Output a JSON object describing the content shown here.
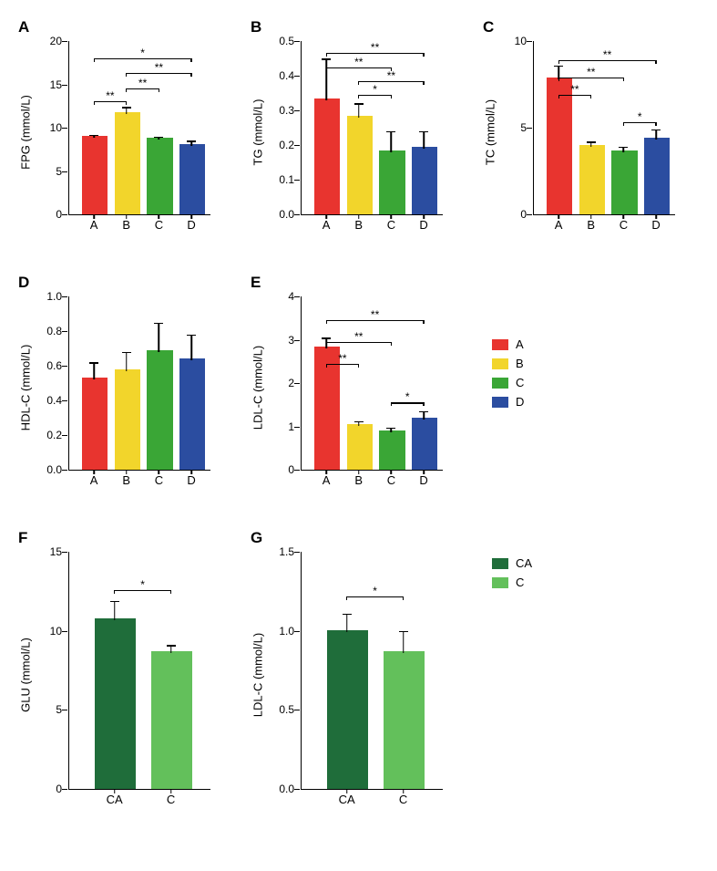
{
  "colors": {
    "A": "#e8342f",
    "B": "#f2d52b",
    "C": "#3aa636",
    "D": "#2b4da0",
    "CA": "#1f6d3a",
    "Cgreen": "#63c05b",
    "axis": "#000000",
    "bg": "#ffffff"
  },
  "legend_abcd": {
    "items": [
      {
        "label": "A",
        "color_key": "A"
      },
      {
        "label": "B",
        "color_key": "B"
      },
      {
        "label": "C",
        "color_key": "C"
      },
      {
        "label": "D",
        "color_key": "D"
      }
    ]
  },
  "legend_cac": {
    "items": [
      {
        "label": "CA",
        "color_key": "CA"
      },
      {
        "label": "C",
        "color_key": "Cgreen"
      }
    ]
  },
  "panels": {
    "A": {
      "letter": "A",
      "ylabel": "FPG (mmol/L)",
      "ymin": 0,
      "ymax": 20,
      "ytick_step": 5,
      "categories": [
        "A",
        "B",
        "C",
        "D"
      ],
      "bars": [
        {
          "value": 8.8,
          "err": 0.4,
          "color_key": "A"
        },
        {
          "value": 11.6,
          "err": 0.8,
          "color_key": "B"
        },
        {
          "value": 8.6,
          "err": 0.4,
          "color_key": "C"
        },
        {
          "value": 7.9,
          "err": 0.6,
          "color_key": "D"
        }
      ],
      "sigs": [
        {
          "from": 0,
          "to": 1,
          "y": 13.1,
          "label": "**"
        },
        {
          "from": 1,
          "to": 2,
          "y": 14.5,
          "label": "**"
        },
        {
          "from": 1,
          "to": 3,
          "y": 16.3,
          "label": "**"
        },
        {
          "from": 0,
          "to": 3,
          "y": 18.0,
          "label": "*"
        }
      ]
    },
    "B": {
      "letter": "B",
      "ylabel": "TG (mmol/L)",
      "ymin": 0,
      "ymax": 0.5,
      "ytick_step": 0.1,
      "categories": [
        "A",
        "B",
        "C",
        "D"
      ],
      "bars": [
        {
          "value": 0.33,
          "err": 0.12,
          "color_key": "A"
        },
        {
          "value": 0.28,
          "err": 0.04,
          "color_key": "B"
        },
        {
          "value": 0.18,
          "err": 0.06,
          "color_key": "C"
        },
        {
          "value": 0.19,
          "err": 0.05,
          "color_key": "D"
        }
      ],
      "sigs": [
        {
          "from": 1,
          "to": 2,
          "y": 0.345,
          "label": "*"
        },
        {
          "from": 1,
          "to": 3,
          "y": 0.385,
          "label": "**"
        },
        {
          "from": 0,
          "to": 2,
          "y": 0.425,
          "label": "**"
        },
        {
          "from": 0,
          "to": 3,
          "y": 0.465,
          "label": "**"
        }
      ]
    },
    "C": {
      "letter": "C",
      "ylabel": "TC (mmol/L)",
      "ymin": 0,
      "ymax": 10,
      "ytick_step": 5,
      "categories": [
        "A",
        "B",
        "C",
        "D"
      ],
      "bars": [
        {
          "value": 7.8,
          "err": 0.8,
          "color_key": "A"
        },
        {
          "value": 3.9,
          "err": 0.3,
          "color_key": "B"
        },
        {
          "value": 3.6,
          "err": 0.3,
          "color_key": "C"
        },
        {
          "value": 4.3,
          "err": 0.6,
          "color_key": "D"
        }
      ],
      "sigs": [
        {
          "from": 2,
          "to": 3,
          "y": 5.3,
          "label": "*"
        },
        {
          "from": 0,
          "to": 1,
          "y": 6.9,
          "label": "**"
        },
        {
          "from": 0,
          "to": 2,
          "y": 7.9,
          "label": "**"
        },
        {
          "from": 0,
          "to": 3,
          "y": 8.9,
          "label": "**"
        }
      ]
    },
    "D": {
      "letter": "D",
      "ylabel": "HDL-C (mmol/L)",
      "ymin": 0,
      "ymax": 1.0,
      "ytick_step": 0.2,
      "categories": [
        "A",
        "B",
        "C",
        "D"
      ],
      "bars": [
        {
          "value": 0.52,
          "err": 0.1,
          "color_key": "A"
        },
        {
          "value": 0.57,
          "err": 0.11,
          "color_key": "B"
        },
        {
          "value": 0.68,
          "err": 0.17,
          "color_key": "C"
        },
        {
          "value": 0.63,
          "err": 0.15,
          "color_key": "D"
        }
      ],
      "sigs": []
    },
    "E": {
      "letter": "E",
      "ylabel": "LDL-C (mmol/L)",
      "ymin": 0,
      "ymax": 4,
      "ytick_step": 1,
      "categories": [
        "A",
        "B",
        "C",
        "D"
      ],
      "bars": [
        {
          "value": 2.8,
          "err": 0.25,
          "color_key": "A"
        },
        {
          "value": 1.02,
          "err": 0.1,
          "color_key": "B"
        },
        {
          "value": 0.87,
          "err": 0.1,
          "color_key": "C"
        },
        {
          "value": 1.15,
          "err": 0.2,
          "color_key": "D"
        }
      ],
      "sigs": [
        {
          "from": 2,
          "to": 3,
          "y": 1.55,
          "label": "*"
        },
        {
          "from": 0,
          "to": 1,
          "y": 2.45,
          "label": "**"
        },
        {
          "from": 0,
          "to": 2,
          "y": 2.95,
          "label": "**"
        },
        {
          "from": 0,
          "to": 3,
          "y": 3.45,
          "label": "**"
        }
      ]
    },
    "F": {
      "letter": "F",
      "ylabel": "GLU (mmol/L)",
      "ymin": 0,
      "ymax": 15,
      "ytick_step": 5,
      "categories": [
        "CA",
        "C"
      ],
      "bars": [
        {
          "value": 10.7,
          "err": 1.2,
          "color_key": "CA"
        },
        {
          "value": 8.6,
          "err": 0.5,
          "color_key": "Cgreen"
        }
      ],
      "sigs": [
        {
          "from": 0,
          "to": 1,
          "y": 12.6,
          "label": "*"
        }
      ]
    },
    "G": {
      "letter": "G",
      "ylabel": "LDL-C (mmol/L)",
      "ymin": 0,
      "ymax": 1.5,
      "ytick_step": 0.5,
      "categories": [
        "CA",
        "C"
      ],
      "bars": [
        {
          "value": 0.99,
          "err": 0.12,
          "color_key": "CA"
        },
        {
          "value": 0.86,
          "err": 0.14,
          "color_key": "Cgreen"
        }
      ],
      "sigs": [
        {
          "from": 0,
          "to": 1,
          "y": 1.22,
          "label": "*"
        }
      ]
    }
  },
  "layout": {
    "panel_label_fontsize": 17,
    "axis_label_fontsize": 13,
    "tick_fontsize": 12,
    "sig_fontsize": 12,
    "bar_width_frac_4": 0.17,
    "bar_gap_frac_4": 0.06,
    "bar_width_frac_2": 0.28,
    "bar_gap_frac_2": 0.12
  }
}
